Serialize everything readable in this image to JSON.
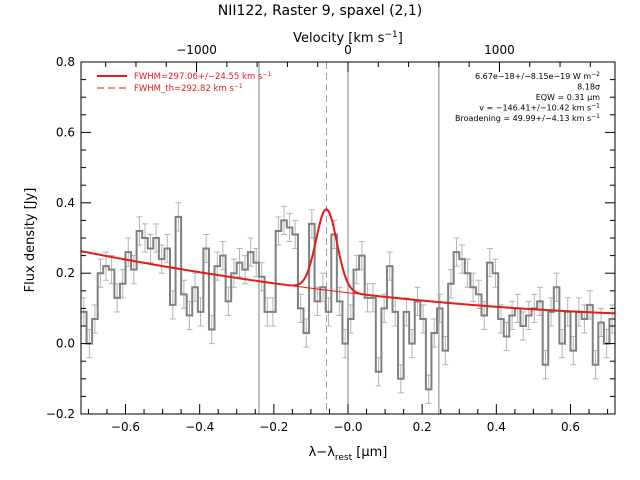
{
  "chart_data": {
    "type": "line",
    "title": "NII122, Raster 9, spaxel (2,1)",
    "xlabel": "λ−λ",
    "xlabel_sub": "rest",
    "xlabel_unit": " [μm]",
    "ylabel": "Flux density [Jy]",
    "top_axis_label": "Velocity [km s",
    "top_axis_sup": "−1",
    "top_axis_close": "]",
    "xlim": [
      -0.72,
      0.72
    ],
    "ylim": [
      -0.2,
      0.8
    ],
    "x_ticks": [
      {
        "v": -0.6,
        "label": "−0.6"
      },
      {
        "v": -0.4,
        "label": "−0.4"
      },
      {
        "v": -0.2,
        "label": "−0.2"
      },
      {
        "v": 0.0,
        "label": "−0.0"
      },
      {
        "v": 0.2,
        "label": "0.2"
      },
      {
        "v": 0.4,
        "label": "0.4"
      },
      {
        "v": 0.6,
        "label": "0.6"
      }
    ],
    "y_ticks": [
      {
        "v": -0.2,
        "label": "−0.2"
      },
      {
        "v": 0.0,
        "label": "0.0"
      },
      {
        "v": 0.2,
        "label": "0.2"
      },
      {
        "v": 0.4,
        "label": "0.4"
      },
      {
        "v": 0.6,
        "label": "0.6"
      },
      {
        "v": 0.8,
        "label": "0.8"
      }
    ],
    "top_ticks": [
      {
        "v": -0.4084,
        "label": "−1000"
      },
      {
        "v": 0.0,
        "label": "0"
      },
      {
        "v": 0.4084,
        "label": "1000"
      }
    ],
    "vertical_lines_solid": [
      -0.24,
      0.0,
      0.245
    ],
    "vertical_line_dashed": -0.058,
    "spectrum": {
      "x": [
        -0.72,
        -0.705,
        -0.69,
        -0.675,
        -0.66,
        -0.645,
        -0.63,
        -0.615,
        -0.6,
        -0.585,
        -0.57,
        -0.555,
        -0.54,
        -0.525,
        -0.51,
        -0.495,
        -0.48,
        -0.465,
        -0.45,
        -0.435,
        -0.42,
        -0.405,
        -0.39,
        -0.375,
        -0.36,
        -0.345,
        -0.33,
        -0.315,
        -0.3,
        -0.285,
        -0.27,
        -0.255,
        -0.24,
        -0.225,
        -0.21,
        -0.195,
        -0.18,
        -0.165,
        -0.15,
        -0.135,
        -0.12,
        -0.105,
        -0.09,
        -0.075,
        -0.06,
        -0.045,
        -0.03,
        -0.015,
        0.0,
        0.015,
        0.03,
        0.045,
        0.06,
        0.075,
        0.09,
        0.105,
        0.12,
        0.135,
        0.15,
        0.165,
        0.18,
        0.195,
        0.21,
        0.225,
        0.24,
        0.255,
        0.27,
        0.285,
        0.3,
        0.315,
        0.33,
        0.345,
        0.36,
        0.375,
        0.39,
        0.405,
        0.42,
        0.435,
        0.45,
        0.465,
        0.48,
        0.495,
        0.51,
        0.525,
        0.54,
        0.555,
        0.57,
        0.585,
        0.6,
        0.615,
        0.63,
        0.645,
        0.66,
        0.675,
        0.69,
        0.705
      ],
      "y": [
        0.09,
        0.0,
        0.07,
        0.2,
        0.22,
        0.21,
        0.13,
        0.17,
        0.26,
        0.21,
        0.32,
        0.3,
        0.27,
        0.3,
        0.24,
        0.27,
        0.11,
        0.36,
        0.14,
        0.08,
        0.16,
        0.09,
        0.27,
        0.04,
        0.22,
        0.25,
        0.12,
        0.2,
        0.23,
        0.21,
        0.26,
        0.23,
        0.19,
        0.09,
        0.09,
        0.32,
        0.35,
        0.33,
        0.31,
        0.1,
        0.03,
        0.34,
        0.12,
        0.16,
        0.09,
        0.31,
        0.12,
        0.0,
        0.07,
        0.21,
        0.25,
        0.13,
        0.13,
        -0.08,
        0.1,
        0.22,
        0.09,
        -0.1,
        0.09,
        0.0,
        0.12,
        0.07,
        -0.13,
        0.03,
        0.1,
        -0.02,
        0.17,
        0.26,
        0.24,
        0.2,
        0.16,
        0.14,
        0.08,
        0.23,
        0.2,
        0.07,
        0.02,
        0.08,
        0.1,
        0.05,
        0.08,
        0.1,
        0.12,
        -0.06,
        0.09,
        0.16,
        0.0,
        0.09,
        -0.02,
        0.09,
        0.07,
        0.11,
        -0.06,
        0.06,
        0.0,
        0.07
      ],
      "error": 0.04
    },
    "fit": {
      "continuum_a": 0.1445,
      "continuum_b": -0.1227,
      "continuum_c": 0.0575,
      "peak": 0.23,
      "center": -0.058,
      "sigma": 0.028
    },
    "legend": [
      {
        "label": "FWHM=297.06+/−24.55 km s",
        "sup": "−1",
        "style": "solid"
      },
      {
        "label": "FWHM_th=292.82 km s",
        "sup": "−1",
        "style": "dashed"
      }
    ],
    "annotations": [
      {
        "text": "6.67e−18+/−8.15e−19 W m",
        "sup": "−2"
      },
      {
        "text": "8.18σ",
        "sup": ""
      },
      {
        "text": "EQW = 0.31 μm",
        "sup": ""
      },
      {
        "text": "v = −146.41+/−10.42 km s",
        "sup": "−1"
      },
      {
        "text": "Broadening = 49.99+/−4.13 km s",
        "sup": "−1"
      }
    ],
    "colors": {
      "spectrum": "#808080",
      "errorbar": "#b4b4b4",
      "fit": "#e41a1c",
      "axis": "#000000",
      "vline": "#808080"
    }
  }
}
